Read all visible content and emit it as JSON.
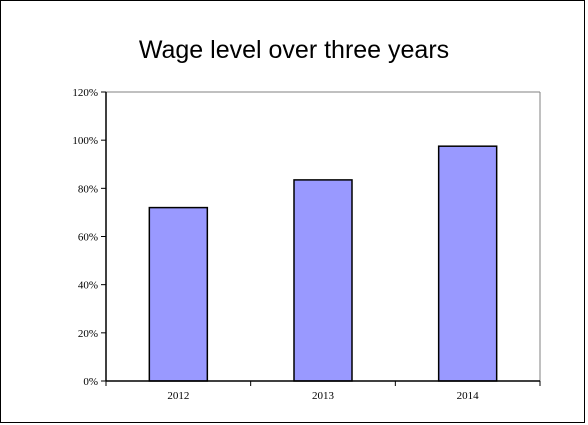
{
  "chart_data": {
    "type": "bar",
    "title": "Wage level over three years",
    "categories": [
      "2012",
      "2013",
      "2014"
    ],
    "values": [
      72,
      83.5,
      97.5
    ],
    "yticks": [
      "0%",
      "20%",
      "40%",
      "60%",
      "80%",
      "100%",
      "120%"
    ],
    "ylim": [
      0,
      120
    ],
    "xlabel": "",
    "ylabel": "",
    "grid": false,
    "legend": "none",
    "bar_color": "#9999ff",
    "bar_outline": "#000000"
  }
}
